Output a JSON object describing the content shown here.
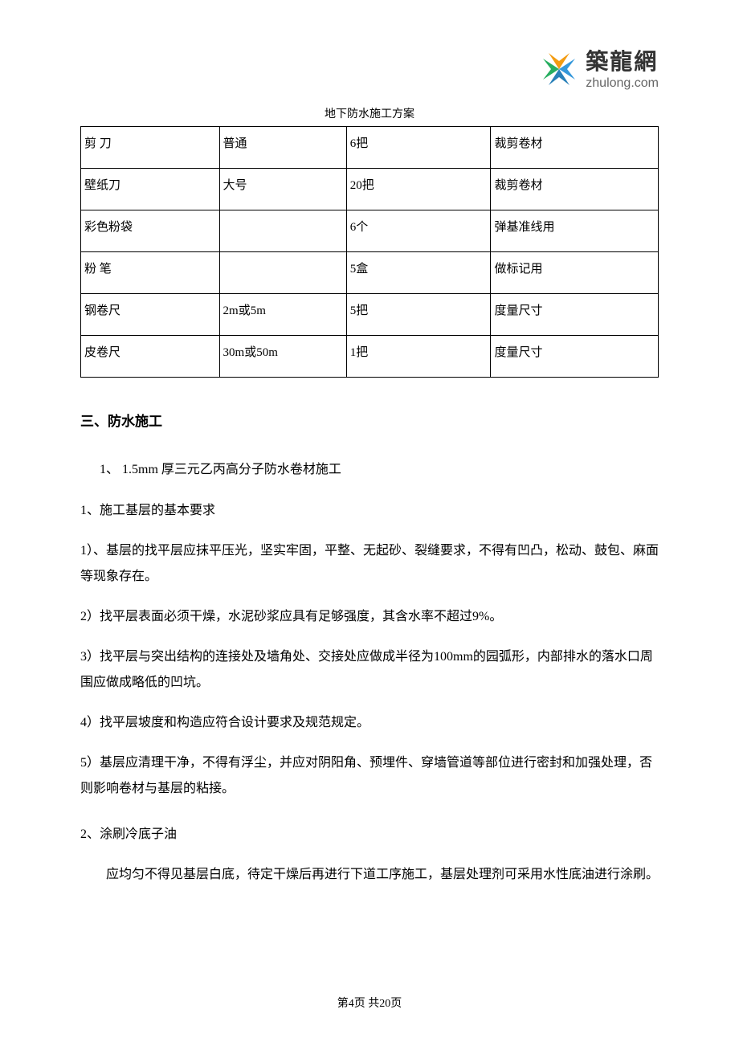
{
  "logo": {
    "cn": "築龍網",
    "en": "zhulong.com",
    "colors": {
      "tl": "#f39c12",
      "tr": "#3498db",
      "bl": "#27ae60",
      "br": "#2980b9"
    }
  },
  "docTitle": "地下防水施工方案",
  "table": {
    "rows": [
      [
        "剪 刀",
        "普通",
        "6把",
        "裁剪卷材"
      ],
      [
        "壁纸刀",
        "大号",
        "20把",
        "裁剪卷材"
      ],
      [
        "彩色粉袋",
        "",
        "6个",
        "弹基准线用"
      ],
      [
        "粉 笔",
        "",
        "5盒",
        "做标记用"
      ],
      [
        "钢卷尺",
        "2m或5m",
        "5把",
        "度量尺寸"
      ],
      [
        "皮卷尺",
        "30m或50m",
        "1把",
        "度量尺寸"
      ]
    ]
  },
  "sectionHeading": "三、防水施工",
  "item1": "1、 1.5mm 厚三元乙丙高分子防水卷材施工",
  "item1_1": "1、施工基层的基本要求",
  "p1": "1）、基层的找平层应抹平压光，坚实牢固，平整、无起砂、裂缝要求，不得有凹凸，松动、鼓包、麻面等现象存在。",
  "p2": "2）找平层表面必须干燥，水泥砂浆应具有足够强度，其含水率不超过9%。",
  "p3": "3）找平层与突出结构的连接处及墙角处、交接处应做成半径为100mm的园弧形，内部排水的落水口周围应做成略低的凹坑。",
  "p4": "4）找平层坡度和构造应符合设计要求及规范规定。",
  "p5": "5）基层应清理干净，不得有浮尘，并应对阴阳角、预埋件、穿墙管道等部位进行密封和加强处理，否则影响卷材与基层的粘接。",
  "item1_2": "2、涂刷冷底子油",
  "p6": "应均匀不得见基层白底，待定干燥后再进行下道工序施工，基层处理剂可采用水性底油进行涂刷。",
  "footer": "第4页 共20页"
}
